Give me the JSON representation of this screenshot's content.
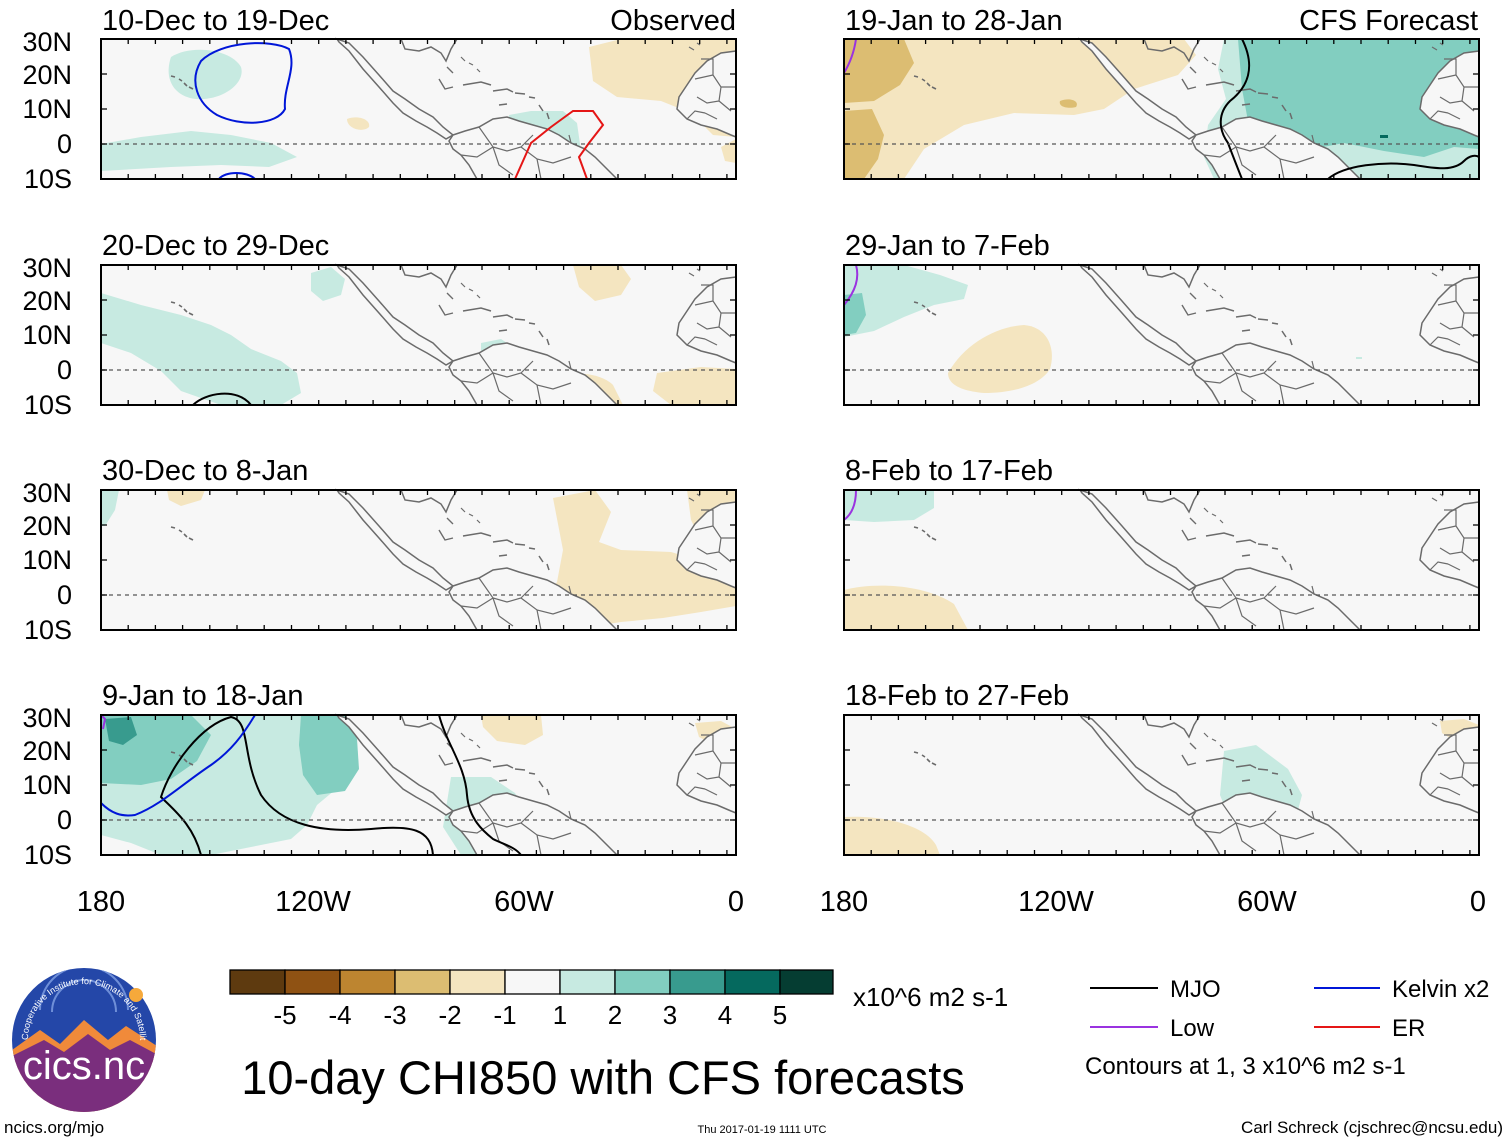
{
  "title": "10-day CHI850 with CFS forecasts",
  "colors": {
    "brown": [
      "#5e3a0f",
      "#8f5213",
      "#bd8530",
      "#dcbd72",
      "#f4e5c0"
    ],
    "neutral": "#f7f7f7",
    "teal": [
      "#c7eae1",
      "#82cec0",
      "#389b8e",
      "#05695e",
      "#053d32"
    ],
    "mjo": "#000000",
    "kelvin": "#0016d8",
    "low": "#9a33e0",
    "er": "#e51616",
    "land": "#6b6b6b"
  },
  "latitude_labels": [
    "30N",
    "20N",
    "10N",
    "0",
    "10S"
  ],
  "longitude_labels": [
    "180",
    "120W",
    "60W",
    "0"
  ],
  "column_labels": {
    "left": "Observed",
    "right": "CFS Forecast"
  },
  "panels": {
    "left": [
      {
        "title": "10-Dec to 19-Dec"
      },
      {
        "title": "20-Dec to 29-Dec"
      },
      {
        "title": "30-Dec to 8-Jan"
      },
      {
        "title": "9-Jan to 18-Jan"
      }
    ],
    "right": [
      {
        "title": "19-Jan to 28-Jan"
      },
      {
        "title": "29-Jan to 7-Feb"
      },
      {
        "title": "8-Feb to 17-Feb"
      },
      {
        "title": "18-Feb to 27-Feb"
      }
    ]
  },
  "colorbar": {
    "ticks": [
      "-5",
      "-4",
      "-3",
      "-2",
      "-1",
      "1",
      "2",
      "3",
      "4",
      "5"
    ],
    "units": "x10^6 m2 s-1"
  },
  "legend": {
    "items": [
      {
        "label": "MJO",
        "color": "#000000"
      },
      {
        "label": "Kelvin x2",
        "color": "#0016d8"
      },
      {
        "label": "Low",
        "color": "#9a33e0"
      },
      {
        "label": "ER",
        "color": "#e51616"
      }
    ],
    "note": "Contours at 1, 3 x10^6 m2 s-1"
  },
  "footer": {
    "site": "ncics.org/mjo",
    "timestamp": "Thu 2017-01-19 1111 UTC",
    "author": "Carl Schreck (cjschrec@ncsu.edu)"
  },
  "logo": {
    "text": "cics.nc",
    "ring_text": "Cooperative Institute for Climate and Satellites"
  }
}
